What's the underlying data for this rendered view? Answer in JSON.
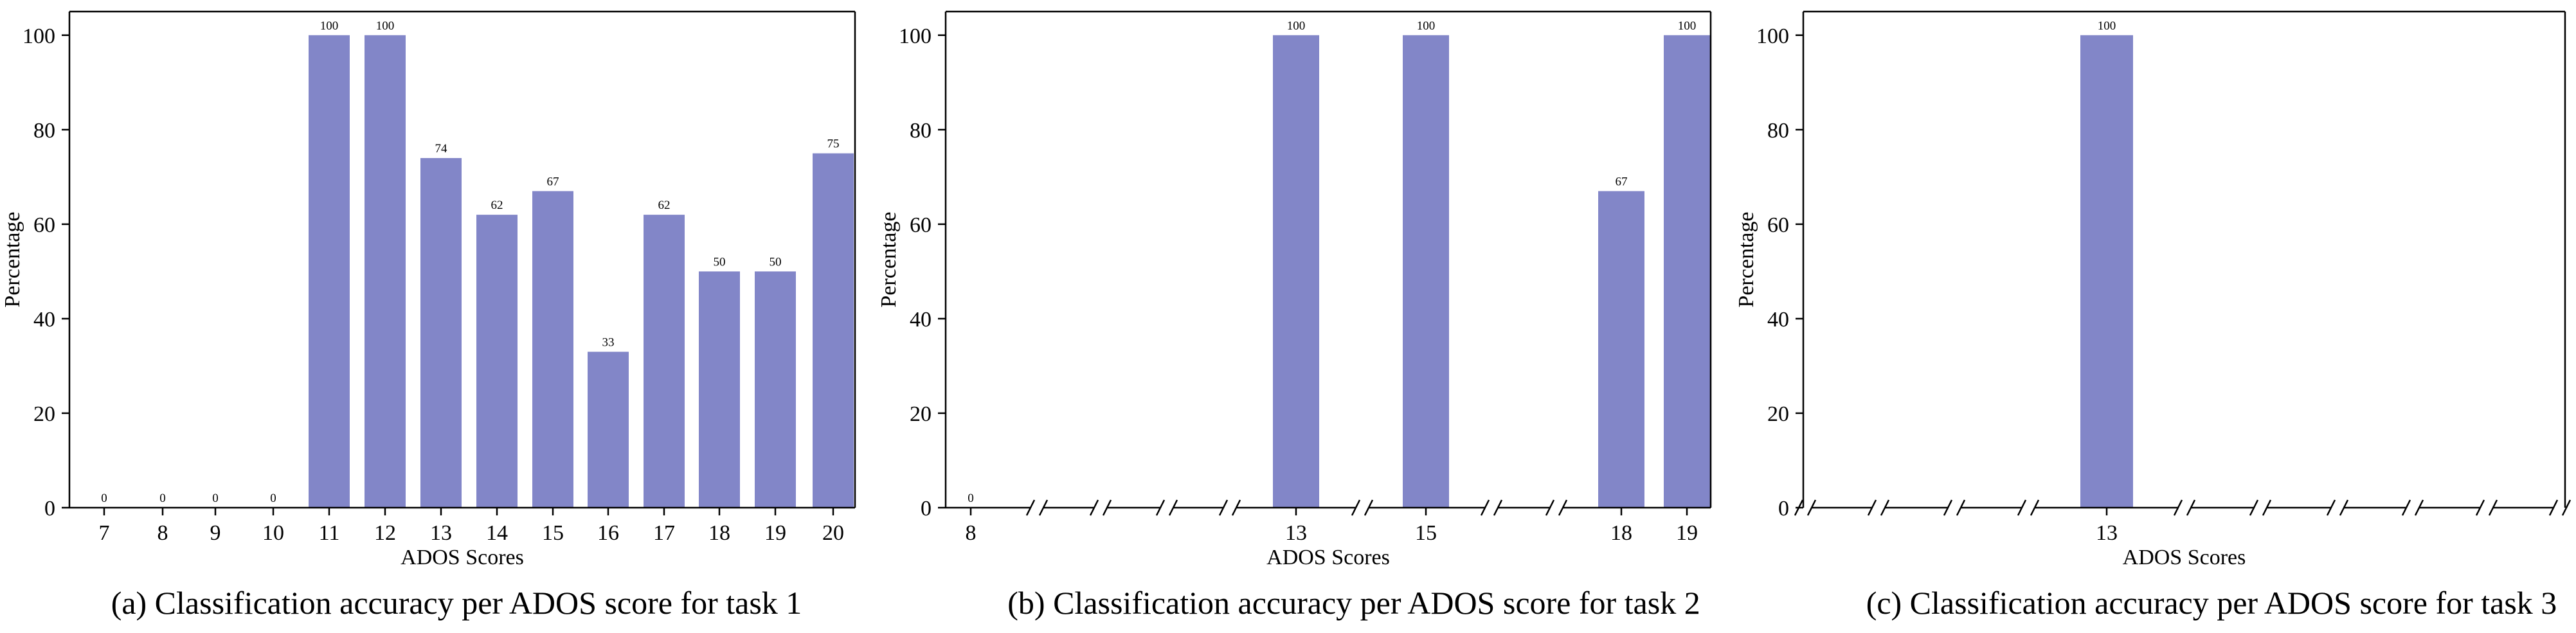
{
  "colors": {
    "bar": "#8286c8",
    "axis": "#000000"
  },
  "chart_data": [
    {
      "type": "bar",
      "caption": "(a) Classification accuracy per ADOS score for task 1",
      "xlabel": "ADOS Scores",
      "ylabel": "Percentage",
      "ylim": [
        0,
        105
      ],
      "yticks": [
        0,
        20,
        40,
        60,
        80,
        100
      ],
      "grid": false,
      "axis_breaks": false,
      "categories": [
        "7",
        "8",
        "9",
        "10",
        "11",
        "12",
        "13",
        "14",
        "15",
        "16",
        "17",
        "18",
        "19",
        "20"
      ],
      "values": [
        0,
        0,
        0,
        0,
        100,
        100,
        74,
        62,
        67,
        33,
        62,
        50,
        50,
        75
      ],
      "value_labels": [
        "0",
        "0",
        "0",
        "0",
        "100",
        "100",
        "74",
        "62",
        "67",
        "33",
        "62",
        "50",
        "50",
        "75"
      ]
    },
    {
      "type": "bar",
      "caption": "(b) Classification accuracy per ADOS score for task 2",
      "xlabel": "ADOS Scores",
      "ylabel": "Percentage",
      "ylim": [
        0,
        105
      ],
      "yticks": [
        0,
        20,
        40,
        60,
        80,
        100
      ],
      "grid": false,
      "axis_breaks": true,
      "categories": [
        "8",
        "13",
        "15",
        "18",
        "19"
      ],
      "values": [
        0,
        100,
        100,
        67,
        100
      ],
      "value_labels": [
        "0",
        "100",
        "100",
        "67",
        "100"
      ]
    },
    {
      "type": "bar",
      "caption": "(c) Classification accuracy per ADOS score for task 3",
      "xlabel": "ADOS Scores",
      "ylabel": "Percentage",
      "ylim": [
        0,
        105
      ],
      "yticks": [
        0,
        20,
        40,
        60,
        80,
        100
      ],
      "grid": false,
      "axis_breaks": true,
      "categories": [
        "13"
      ],
      "values": [
        100
      ],
      "value_labels": [
        "100"
      ]
    }
  ]
}
